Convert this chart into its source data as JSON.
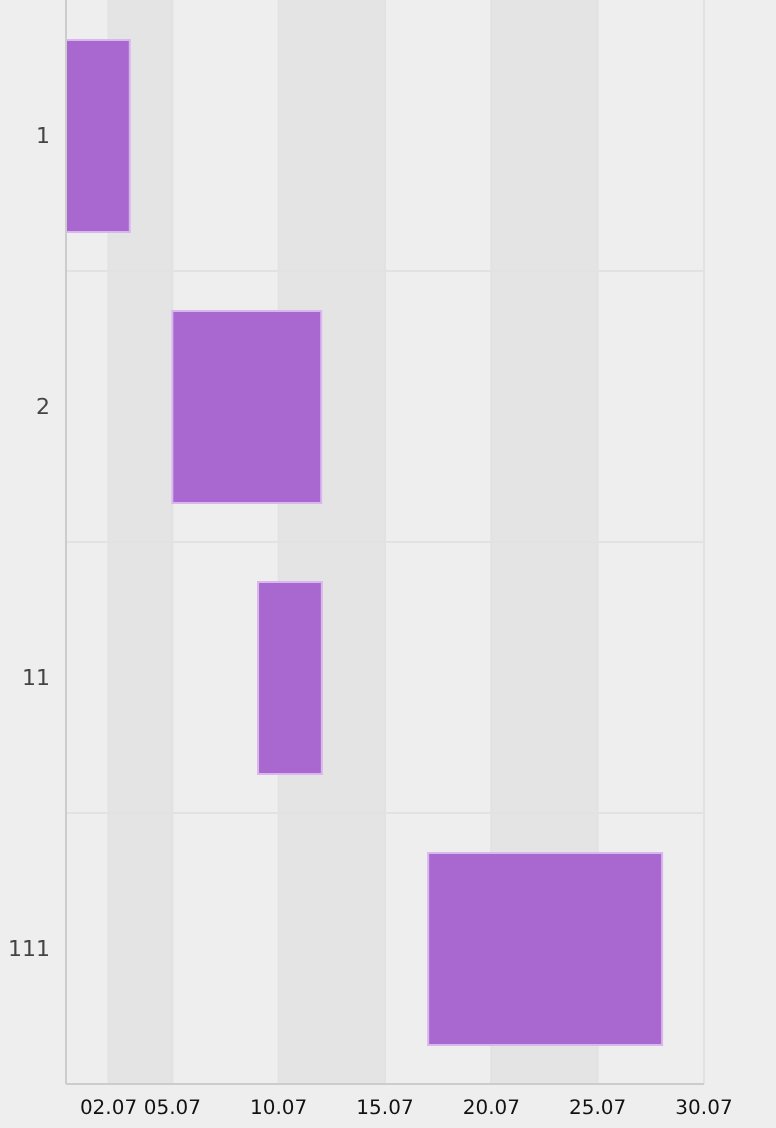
{
  "chart_data": {
    "type": "bar",
    "orientation": "horizontal",
    "categories": [
      "1",
      "2",
      "11",
      "111"
    ],
    "base": [
      0.07,
      5.07,
      9.1,
      17.1
    ],
    "values": [
      3,
      7,
      3,
      11
    ],
    "color": "#a868cf",
    "xlim": [
      0.07,
      30.07
    ],
    "xticks": [
      {
        "value": 2.07,
        "label": "02.07"
      },
      {
        "value": 5.07,
        "label": "05.07"
      },
      10.07,
      15.07,
      20.07,
      25.07,
      30.07
    ],
    "grid": true
  }
}
